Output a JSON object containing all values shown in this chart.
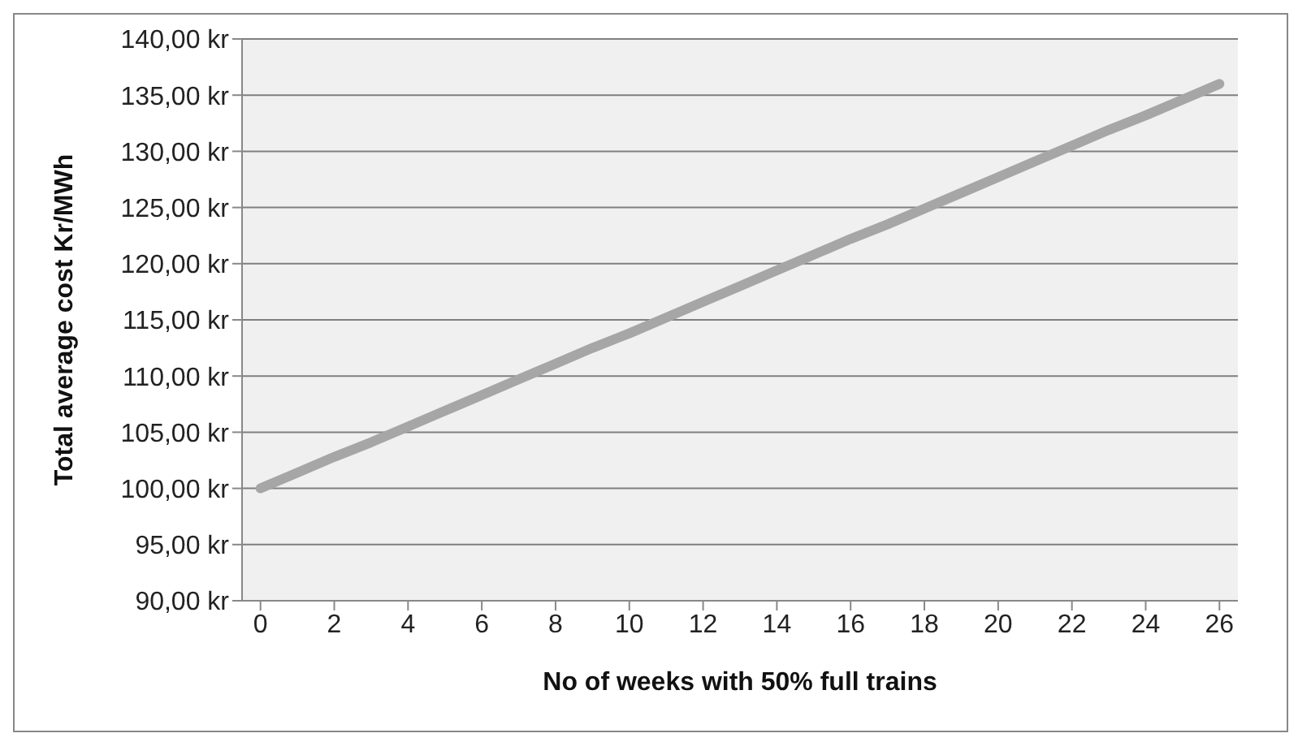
{
  "chart_data": {
    "type": "line",
    "xlabel": "No of weeks with 50% full trains",
    "ylabel": "Total average cost Kr/MWh",
    "x": [
      0,
      1,
      2,
      3,
      4,
      5,
      6,
      7,
      8,
      9,
      10,
      11,
      12,
      13,
      14,
      15,
      16,
      17,
      18,
      19,
      20,
      21,
      22,
      23,
      24,
      25,
      26
    ],
    "xlim": [
      -0.5,
      26.5
    ],
    "xticks": [
      0,
      2,
      4,
      6,
      8,
      10,
      12,
      14,
      16,
      18,
      20,
      22,
      24,
      26
    ],
    "series": [
      {
        "color": "#a6a6a6",
        "values": [
          100,
          101.4,
          102.8,
          104.1,
          105.5,
          106.9,
          108.3,
          109.7,
          111.1,
          112.5,
          113.8,
          115.2,
          116.6,
          118.0,
          119.4,
          120.8,
          122.2,
          123.5,
          124.9,
          126.3,
          127.7,
          129.1,
          130.5,
          131.9,
          133.2,
          134.6,
          136
        ]
      }
    ],
    "ylim": [
      90,
      140
    ],
    "yticks": [
      {
        "value": 90,
        "label": "90,00 kr"
      },
      {
        "value": 95,
        "label": "95,00 kr"
      },
      {
        "value": 100,
        "label": "100,00 kr"
      },
      {
        "value": 105,
        "label": "105,00 kr"
      },
      {
        "value": 110,
        "label": "110,00 kr"
      },
      {
        "value": 115,
        "label": "115,00 kr"
      },
      {
        "value": 120,
        "label": "120,00 kr"
      },
      {
        "value": 125,
        "label": "125,00 kr"
      },
      {
        "value": 130,
        "label": "130,00 kr"
      },
      {
        "value": 135,
        "label": "135,00 kr"
      },
      {
        "value": 140,
        "label": "140,00 kr"
      }
    ],
    "grid": "y",
    "marker": "none",
    "line_style": "solid"
  }
}
